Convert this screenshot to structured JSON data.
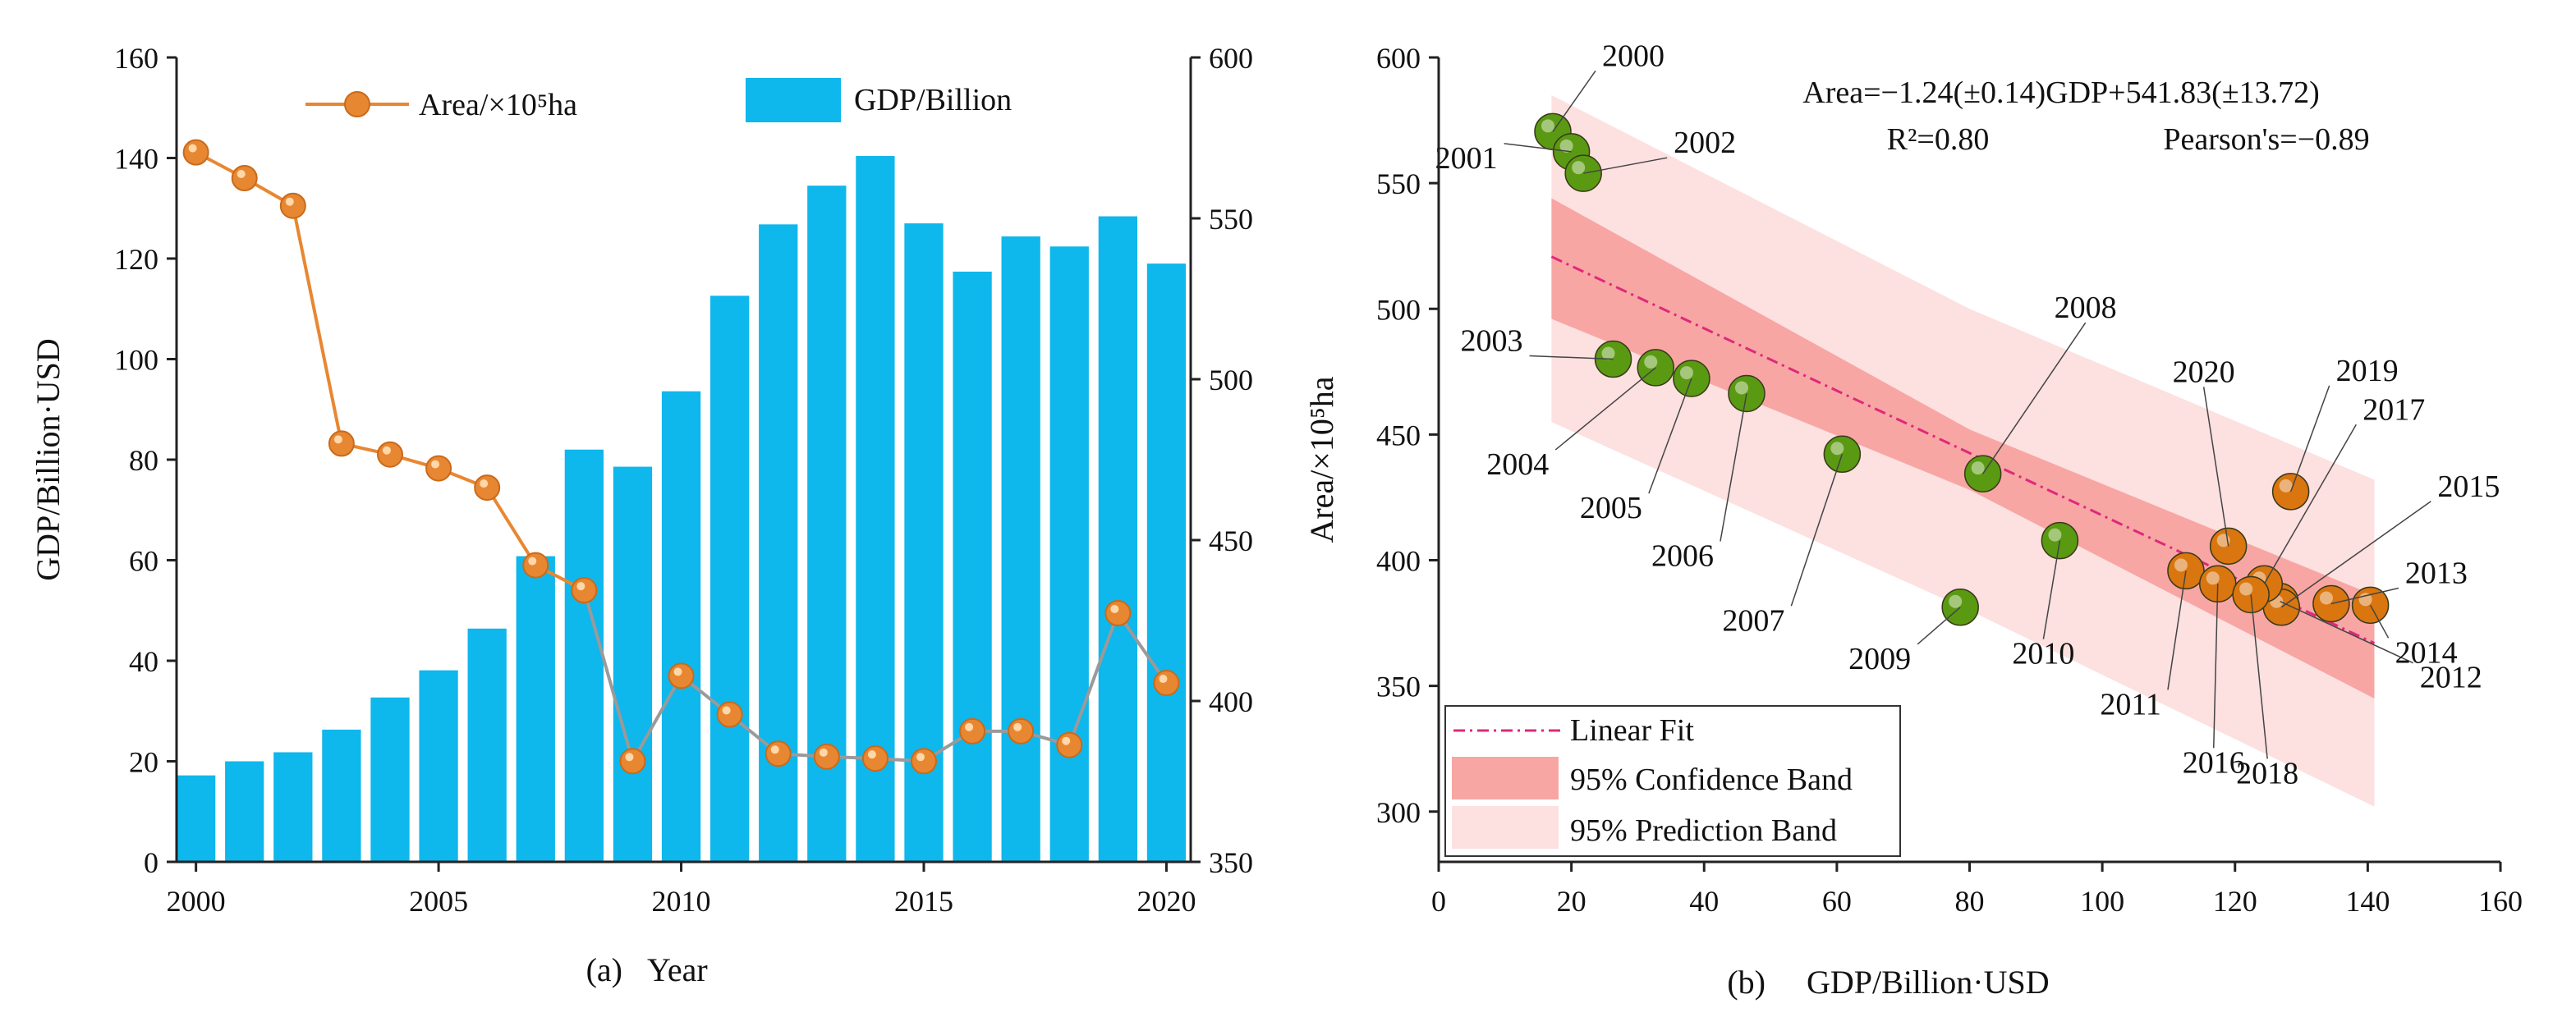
{
  "chart_data": [
    {
      "panel": "(a)",
      "type": "bar+line",
      "caption_label": "(a)",
      "xlabel": "Year",
      "ylabel_left": "GDP/Billion·USD",
      "x": [
        2000,
        2001,
        2002,
        2003,
        2004,
        2005,
        2006,
        2007,
        2008,
        2009,
        2010,
        2011,
        2012,
        2013,
        2014,
        2015,
        2016,
        2017,
        2018,
        2019,
        2020
      ],
      "x_ticks": [
        2000,
        2005,
        2010,
        2015,
        2020
      ],
      "y_left_lim": [
        0,
        160
      ],
      "y_left_ticks": [
        0,
        20,
        40,
        60,
        80,
        100,
        120,
        140,
        160
      ],
      "y_right_lim": [
        350,
        600
      ],
      "y_right_ticks": [
        350,
        400,
        450,
        500,
        550,
        600
      ],
      "series": [
        {
          "name": "GDP/Billion",
          "kind": "bar",
          "axis": "left",
          "color": "#0eb7ec",
          "values": [
            17.2,
            20,
            21.8,
            26.3,
            32.7,
            38.1,
            46.4,
            60.8,
            82,
            78.6,
            93.6,
            112.6,
            126.8,
            134.5,
            140.4,
            127,
            117.4,
            124.4,
            122.4,
            128.4,
            119
          ]
        },
        {
          "name": "Area/×10⁵ha",
          "kind": "line",
          "axis": "right",
          "color": "#e88732",
          "values": [
            570.5,
            562.5,
            553.9,
            480,
            476.6,
            472.3,
            466.3,
            442.2,
            434.4,
            381.3,
            407.8,
            395.8,
            383.6,
            382.7,
            382.1,
            381.3,
            390.6,
            390.6,
            386.3,
            427.3,
            405.6
          ]
        }
      ]
    },
    {
      "panel": "(b)",
      "type": "scatter",
      "caption_label": "(b)",
      "xlabel": "GDP/Billion·USD",
      "ylabel": "Area/×10⁵ha",
      "xlim": [
        0,
        160
      ],
      "ylim": [
        280,
        600
      ],
      "x_ticks": [
        0,
        20,
        40,
        60,
        80,
        100,
        120,
        140,
        160
      ],
      "y_ticks": [
        300,
        350,
        400,
        450,
        500,
        550,
        600
      ],
      "equation": "Area=−1.24(±0.14)GDP+541.83(±13.72)",
      "r2_text": "R²=0.80",
      "pearson_text": "Pearson's=−0.89",
      "fit": {
        "slope": -1.24,
        "intercept": 541.83,
        "x_range": [
          17,
          141
        ]
      },
      "confidence_band": {
        "upper": [
          [
            17,
            544
          ],
          [
            80,
            452
          ],
          [
            141,
            386
          ]
        ],
        "lower": [
          [
            17,
            496
          ],
          [
            80,
            428
          ],
          [
            141,
            345
          ]
        ]
      },
      "prediction_band": {
        "upper": [
          [
            17,
            585
          ],
          [
            80,
            500
          ],
          [
            141,
            432
          ]
        ],
        "lower": [
          [
            17,
            455
          ],
          [
            80,
            380
          ],
          [
            141,
            302
          ]
        ]
      },
      "legend": [
        "Linear Fit",
        "95% Confidence Band",
        "95% Prediction Band"
      ],
      "colors": {
        "fit": "#e0287a",
        "confidence": "#f7a6a4",
        "prediction": "#fde0e0",
        "point_green": "#5a9a12",
        "point_orange": "#d9760f"
      },
      "points": [
        {
          "label": "2000",
          "gdp": 17.2,
          "area": 570.5
        },
        {
          "label": "2001",
          "gdp": 20,
          "area": 562.5
        },
        {
          "label": "2002",
          "gdp": 21.8,
          "area": 553.9
        },
        {
          "label": "2003",
          "gdp": 26.3,
          "area": 480
        },
        {
          "label": "2004",
          "gdp": 32.7,
          "area": 476.6
        },
        {
          "label": "2005",
          "gdp": 38.1,
          "area": 472.3
        },
        {
          "label": "2006",
          "gdp": 46.4,
          "area": 466.3
        },
        {
          "label": "2007",
          "gdp": 60.8,
          "area": 442.2
        },
        {
          "label": "2008",
          "gdp": 82,
          "area": 434.4
        },
        {
          "label": "2009",
          "gdp": 78.6,
          "area": 381.3
        },
        {
          "label": "2010",
          "gdp": 93.6,
          "area": 407.8
        },
        {
          "label": "2011",
          "gdp": 112.6,
          "area": 395.8
        },
        {
          "label": "2012",
          "gdp": 126.8,
          "area": 383.6
        },
        {
          "label": "2013",
          "gdp": 134.5,
          "area": 382.7
        },
        {
          "label": "2014",
          "gdp": 140.4,
          "area": 382.1
        },
        {
          "label": "2015",
          "gdp": 127,
          "area": 381.3
        },
        {
          "label": "2016",
          "gdp": 117.4,
          "area": 390.6
        },
        {
          "label": "2017",
          "gdp": 124.4,
          "area": 390.6
        },
        {
          "label": "2018",
          "gdp": 122.4,
          "area": 386.3
        },
        {
          "label": "2019",
          "gdp": 128.4,
          "area": 427.3
        },
        {
          "label": "2020",
          "gdp": 119,
          "area": 405.6
        }
      ]
    }
  ]
}
